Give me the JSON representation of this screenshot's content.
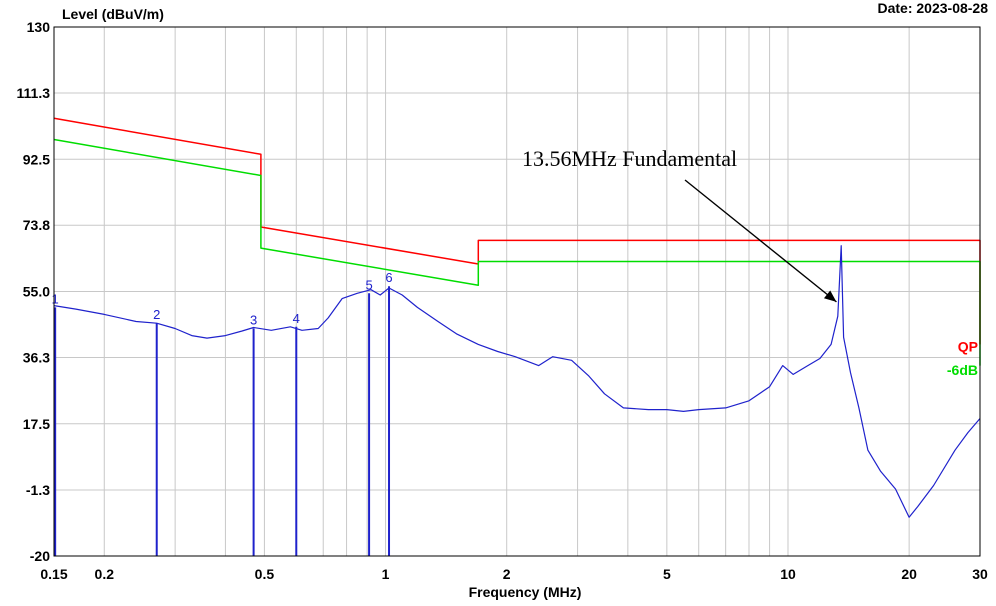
{
  "header": {
    "ylabel": "Level (dBuV/m)",
    "date": "Date: 2023-08-28"
  },
  "chart_data": {
    "type": "line",
    "xlabel": "Frequency (MHz)",
    "ylabel": "Level (dBuV/m)",
    "x_scale": "log",
    "xlim": [
      0.15,
      30
    ],
    "ylim": [
      -20,
      130
    ],
    "grid": true,
    "x_ticks": [
      {
        "value": 0.15,
        "label": "0.15"
      },
      {
        "value": 0.2,
        "label": "0.2"
      },
      {
        "value": 0.5,
        "label": "0.5"
      },
      {
        "value": 1,
        "label": "1"
      },
      {
        "value": 2,
        "label": "2"
      },
      {
        "value": 5,
        "label": "5"
      },
      {
        "value": 10,
        "label": "10"
      },
      {
        "value": 20,
        "label": "20"
      },
      {
        "value": 30,
        "label": "30"
      }
    ],
    "y_ticks": [
      {
        "value": 130,
        "label": "130"
      },
      {
        "value": 111.3,
        "label": "111.3"
      },
      {
        "value": 92.5,
        "label": "92.5"
      },
      {
        "value": 73.8,
        "label": "73.8"
      },
      {
        "value": 55.0,
        "label": "55.0"
      },
      {
        "value": 36.3,
        "label": "36.3"
      },
      {
        "value": 17.5,
        "label": "17.5"
      },
      {
        "value": -1.3,
        "label": "-1.3"
      },
      {
        "value": -20,
        "label": "-20"
      }
    ],
    "series": [
      {
        "name": "QP",
        "color": "#ff0000",
        "points": [
          [
            0.15,
            104.1
          ],
          [
            0.49,
            93.9
          ],
          [
            0.49,
            73.3
          ],
          [
            1.7,
            62.8
          ],
          [
            1.7,
            69.5
          ],
          [
            30,
            69.5
          ],
          [
            30,
            40.0
          ]
        ]
      },
      {
        "name": "-6dB",
        "color": "#00dd00",
        "points": [
          [
            0.15,
            98.1
          ],
          [
            0.49,
            87.9
          ],
          [
            0.49,
            67.3
          ],
          [
            1.7,
            56.8
          ],
          [
            1.7,
            63.5
          ],
          [
            30,
            63.5
          ],
          [
            30,
            34.0
          ]
        ]
      },
      {
        "name": "",
        "color": "#1f22cc",
        "points": [
          [
            0.15,
            51
          ],
          [
            0.17,
            50
          ],
          [
            0.2,
            48.5
          ],
          [
            0.24,
            46.5
          ],
          [
            0.27,
            46
          ],
          [
            0.3,
            44.5
          ],
          [
            0.33,
            42.5
          ],
          [
            0.36,
            41.8
          ],
          [
            0.4,
            42.5
          ],
          [
            0.44,
            43.8
          ],
          [
            0.47,
            44.8
          ],
          [
            0.52,
            44
          ],
          [
            0.58,
            45
          ],
          [
            0.62,
            44
          ],
          [
            0.68,
            44.5
          ],
          [
            0.72,
            47.5
          ],
          [
            0.78,
            53
          ],
          [
            0.85,
            54.5
          ],
          [
            0.92,
            55.5
          ],
          [
            0.97,
            54
          ],
          [
            1.02,
            56
          ],
          [
            1.1,
            54
          ],
          [
            1.2,
            50.5
          ],
          [
            1.35,
            46.5
          ],
          [
            1.5,
            43
          ],
          [
            1.7,
            40
          ],
          [
            1.9,
            38
          ],
          [
            2.1,
            36.5
          ],
          [
            2.4,
            34
          ],
          [
            2.6,
            36.5
          ],
          [
            2.9,
            35.5
          ],
          [
            3.2,
            31
          ],
          [
            3.5,
            26
          ],
          [
            3.9,
            22
          ],
          [
            4.5,
            21.5
          ],
          [
            5.0,
            21.5
          ],
          [
            5.5,
            21
          ],
          [
            6.0,
            21.5
          ],
          [
            7.0,
            22
          ],
          [
            8.0,
            24
          ],
          [
            9.0,
            28
          ],
          [
            9.7,
            34
          ],
          [
            10.3,
            31.5
          ],
          [
            11.2,
            34
          ],
          [
            12.0,
            36
          ],
          [
            12.8,
            40
          ],
          [
            13.3,
            48
          ],
          [
            13.56,
            68
          ],
          [
            13.75,
            42
          ],
          [
            14.3,
            32
          ],
          [
            15.0,
            22
          ],
          [
            15.8,
            10
          ],
          [
            17.0,
            4
          ],
          [
            18.5,
            -1
          ],
          [
            20.0,
            -9
          ],
          [
            21.0,
            -6
          ],
          [
            23.0,
            0
          ],
          [
            26.0,
            10
          ],
          [
            28.0,
            15
          ],
          [
            30.0,
            19
          ]
        ]
      }
    ],
    "markers": [
      {
        "label": "1",
        "x": 0.151,
        "y": 50.5
      },
      {
        "label": "2",
        "x": 0.27,
        "y": 46
      },
      {
        "label": "3",
        "x": 0.47,
        "y": 44.5
      },
      {
        "label": "4",
        "x": 0.6,
        "y": 45
      },
      {
        "label": "5",
        "x": 0.91,
        "y": 54.5
      },
      {
        "label": "6",
        "x": 1.02,
        "y": 56.5
      }
    ],
    "legend": [
      {
        "label": "QP",
        "color": "#ff0000"
      },
      {
        "label": "-6dB",
        "color": "#00dd00"
      }
    ],
    "annotations": [
      {
        "text": "13.56MHz Fundamental",
        "target_x": 13.5,
        "target_y": 60
      }
    ]
  }
}
